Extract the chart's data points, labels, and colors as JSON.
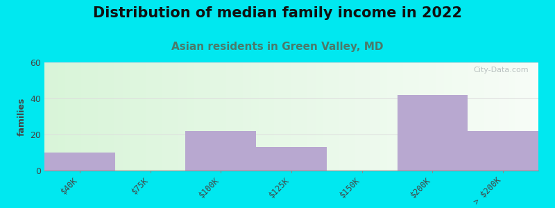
{
  "title": "Distribution of median family income in 2022",
  "subtitle": "Asian residents in Green Valley, MD",
  "categories": [
    "$40K",
    "$75K",
    "$100K",
    "$125K",
    "$150K",
    "$200K",
    "> $200K"
  ],
  "values": [
    10,
    0,
    22,
    13,
    0,
    42,
    22
  ],
  "bar_color": "#b8a8d0",
  "bar_width": 1.0,
  "ylim": [
    0,
    60
  ],
  "yticks": [
    0,
    20,
    40,
    60
  ],
  "ylabel": "families",
  "background_outer": "#00e8f0",
  "title_fontsize": 15,
  "subtitle_fontsize": 11,
  "subtitle_color": "#4a7a6a",
  "watermark": "City-Data.com",
  "grid_color": "#dddddd",
  "tick_label_rotation": 45,
  "grad_left_top": "#d8f0d8",
  "grad_right_top": "#f5f8f5",
  "grad_left_bottom": "#e8f5e8",
  "grad_right_bottom": "#ffffff"
}
